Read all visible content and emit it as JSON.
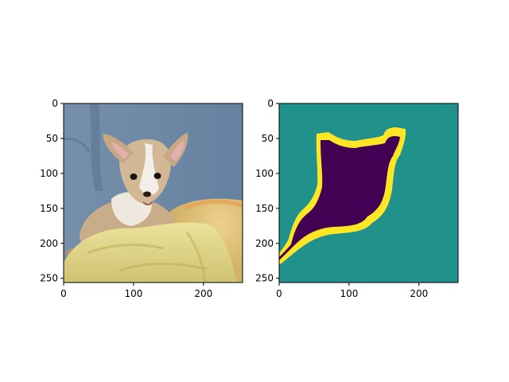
{
  "figure": {
    "panels": [
      {
        "name": "photo",
        "content": "dog-photo",
        "x_range": [
          0,
          256
        ],
        "y_range": [
          0,
          256
        ],
        "x_ticks": [
          0,
          100,
          200
        ],
        "y_ticks": [
          0,
          50,
          100,
          150,
          200,
          250
        ]
      },
      {
        "name": "mask",
        "content": "segmentation-mask",
        "x_range": [
          0,
          256
        ],
        "y_range": [
          0,
          256
        ],
        "x_ticks": [
          0,
          100,
          200
        ],
        "y_ticks": [
          0,
          50,
          100,
          150,
          200,
          250
        ],
        "colors": {
          "background": "#21918c",
          "foreground": "#440154",
          "boundary": "#fde725"
        }
      }
    ]
  }
}
